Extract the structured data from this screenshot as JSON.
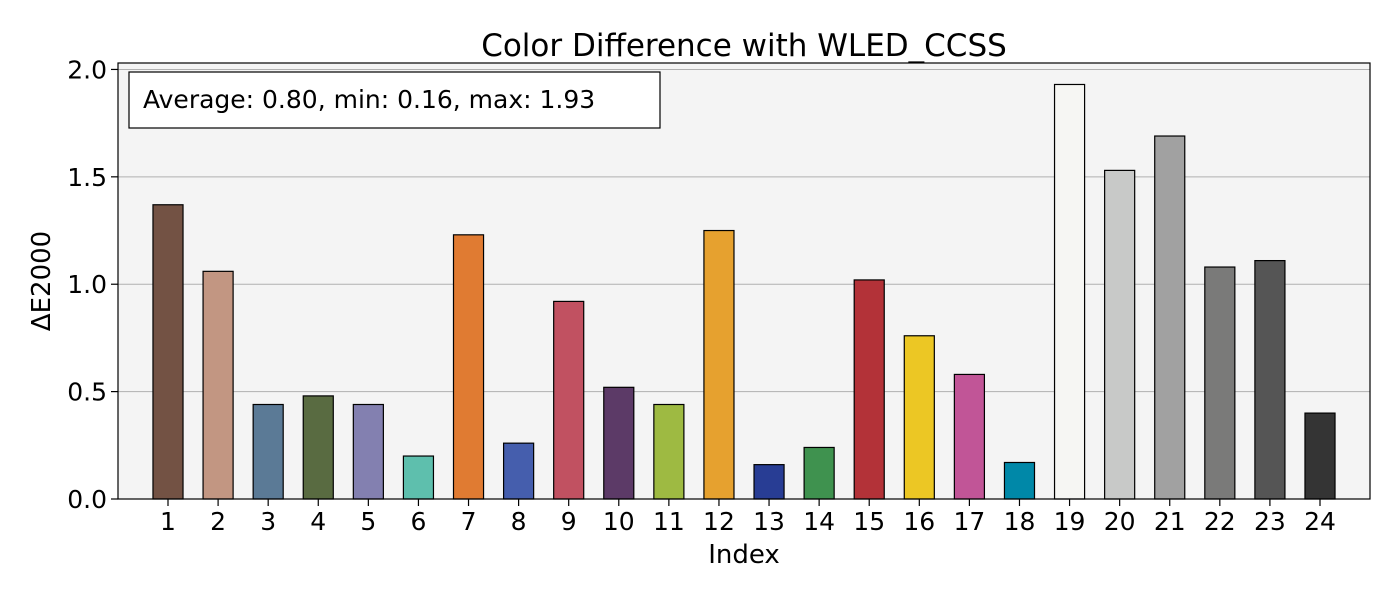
{
  "chart_data": {
    "type": "bar",
    "title": "Color Difference with WLED_CCSS",
    "xlabel": "Index",
    "ylabel": "ΔE2000",
    "annotation": "Average: 0.80, min: 0.16, max: 1.93",
    "annotation_position": "top-left",
    "ylim": [
      0,
      2.03
    ],
    "yticks": [
      "0.0",
      "0.5",
      "1.0",
      "1.5",
      "2.0"
    ],
    "grid": "y",
    "background_color": "#f4f4f4",
    "categories": [
      "1",
      "2",
      "3",
      "4",
      "5",
      "6",
      "7",
      "8",
      "9",
      "10",
      "11",
      "12",
      "13",
      "14",
      "15",
      "16",
      "17",
      "18",
      "19",
      "20",
      "21",
      "22",
      "23",
      "24"
    ],
    "values": [
      1.37,
      1.06,
      0.44,
      0.48,
      0.44,
      0.2,
      1.23,
      0.26,
      0.92,
      0.52,
      0.44,
      1.25,
      0.16,
      0.24,
      1.02,
      0.76,
      0.58,
      0.17,
      1.93,
      1.53,
      1.69,
      1.08,
      1.11,
      0.4
    ],
    "colors": [
      "#735244",
      "#c29682",
      "#5b7a96",
      "#596b41",
      "#8380b0",
      "#5ebfad",
      "#e07b32",
      "#455ead",
      "#c15161",
      "#5c3a67",
      "#9eba42",
      "#e6a12f",
      "#283d94",
      "#3f924f",
      "#b33238",
      "#ecc724",
      "#c15597",
      "#0088a8",
      "#f6f6f3",
      "#c8c9c8",
      "#a1a1a1",
      "#7a7a79",
      "#555555",
      "#343434"
    ]
  }
}
